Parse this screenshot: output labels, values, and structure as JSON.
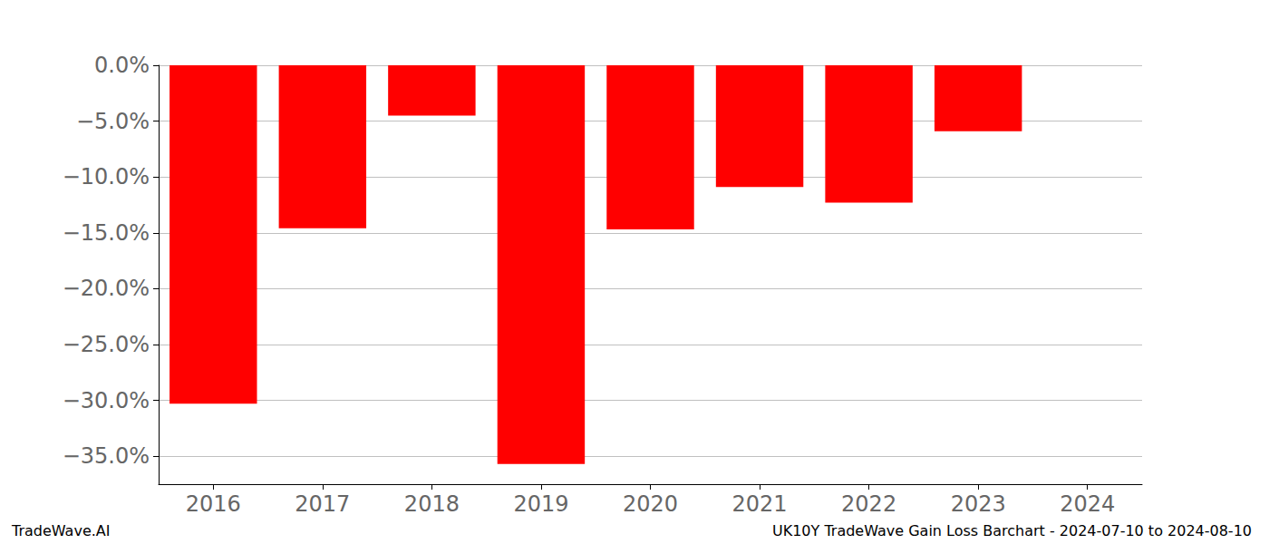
{
  "chart_data": {
    "type": "bar",
    "title": "UK10Y TradeWave Gain Loss Barchart - 2024-07-10 to 2024-08-10",
    "source": "TradeWave.AI",
    "categories": [
      "2016",
      "2017",
      "2018",
      "2019",
      "2020",
      "2021",
      "2022",
      "2023",
      "2024"
    ],
    "values": [
      -30.3,
      -14.6,
      -4.5,
      -35.7,
      -14.7,
      -10.9,
      -12.3,
      -5.9,
      null
    ],
    "color": "#ff0000",
    "ylim": [
      -37.5,
      0
    ],
    "yticks": [
      {
        "value": 0,
        "label": "0.0%"
      },
      {
        "value": -5,
        "label": "−5.0%"
      },
      {
        "value": -10,
        "label": "−10.0%"
      },
      {
        "value": -15,
        "label": "−15.0%"
      },
      {
        "value": -20,
        "label": "−20.0%"
      },
      {
        "value": -25,
        "label": "−25.0%"
      },
      {
        "value": -30,
        "label": "−30.0%"
      },
      {
        "value": -35,
        "label": "−35.0%"
      }
    ],
    "grid": true
  }
}
